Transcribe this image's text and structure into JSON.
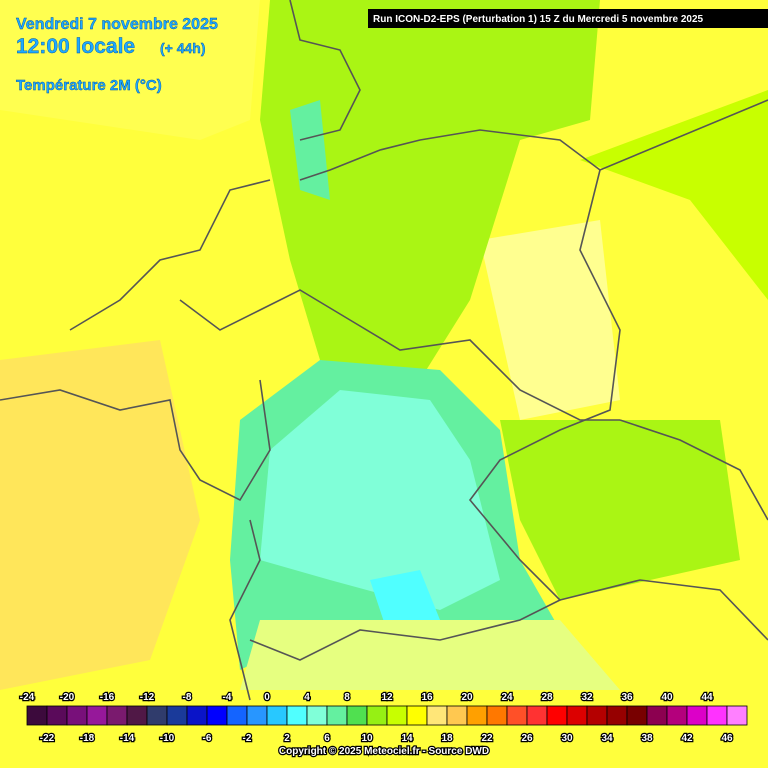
{
  "header": {
    "date": "Vendredi 7 novembre 2025",
    "time": "12:00 locale",
    "lead": "(+ 44h)",
    "variable": "Température 2M (°C)"
  },
  "run": "Run ICON-D2-EPS (Perturbation 1) 15 Z du Mercredi 5 novembre 2025",
  "legend": {
    "values": [
      -24,
      -22,
      -20,
      -18,
      -16,
      -14,
      -12,
      -10,
      -8,
      -6,
      -4,
      -2,
      0,
      2,
      4,
      6,
      8,
      10,
      12,
      14,
      16,
      18,
      20,
      22,
      24,
      26,
      28,
      30,
      32,
      34,
      36,
      38,
      40,
      42,
      44,
      46
    ],
    "colors": [
      "#3c0a3c",
      "#5a0a5a",
      "#78107a",
      "#96189a",
      "#7a1a6e",
      "#501846",
      "#303c6c",
      "#1a3a9a",
      "#0a14c8",
      "#0000ff",
      "#1464ff",
      "#2896ff",
      "#28c8ff",
      "#50ffff",
      "#80ffd8",
      "#64f0a0",
      "#50e050",
      "#96f014",
      "#c8ff00",
      "#ffff00",
      "#ffe678",
      "#ffc850",
      "#ffa000",
      "#ff7800",
      "#ff5028",
      "#ff3232",
      "#ff0000",
      "#dc0000",
      "#b40000",
      "#960000",
      "#780000",
      "#8c0050",
      "#b4007c",
      "#dc00c8",
      "#ff32ff",
      "#ff80ff"
    ]
  },
  "copyright": "Copyright © 2025 Meteociel.fr - Source DWD"
}
